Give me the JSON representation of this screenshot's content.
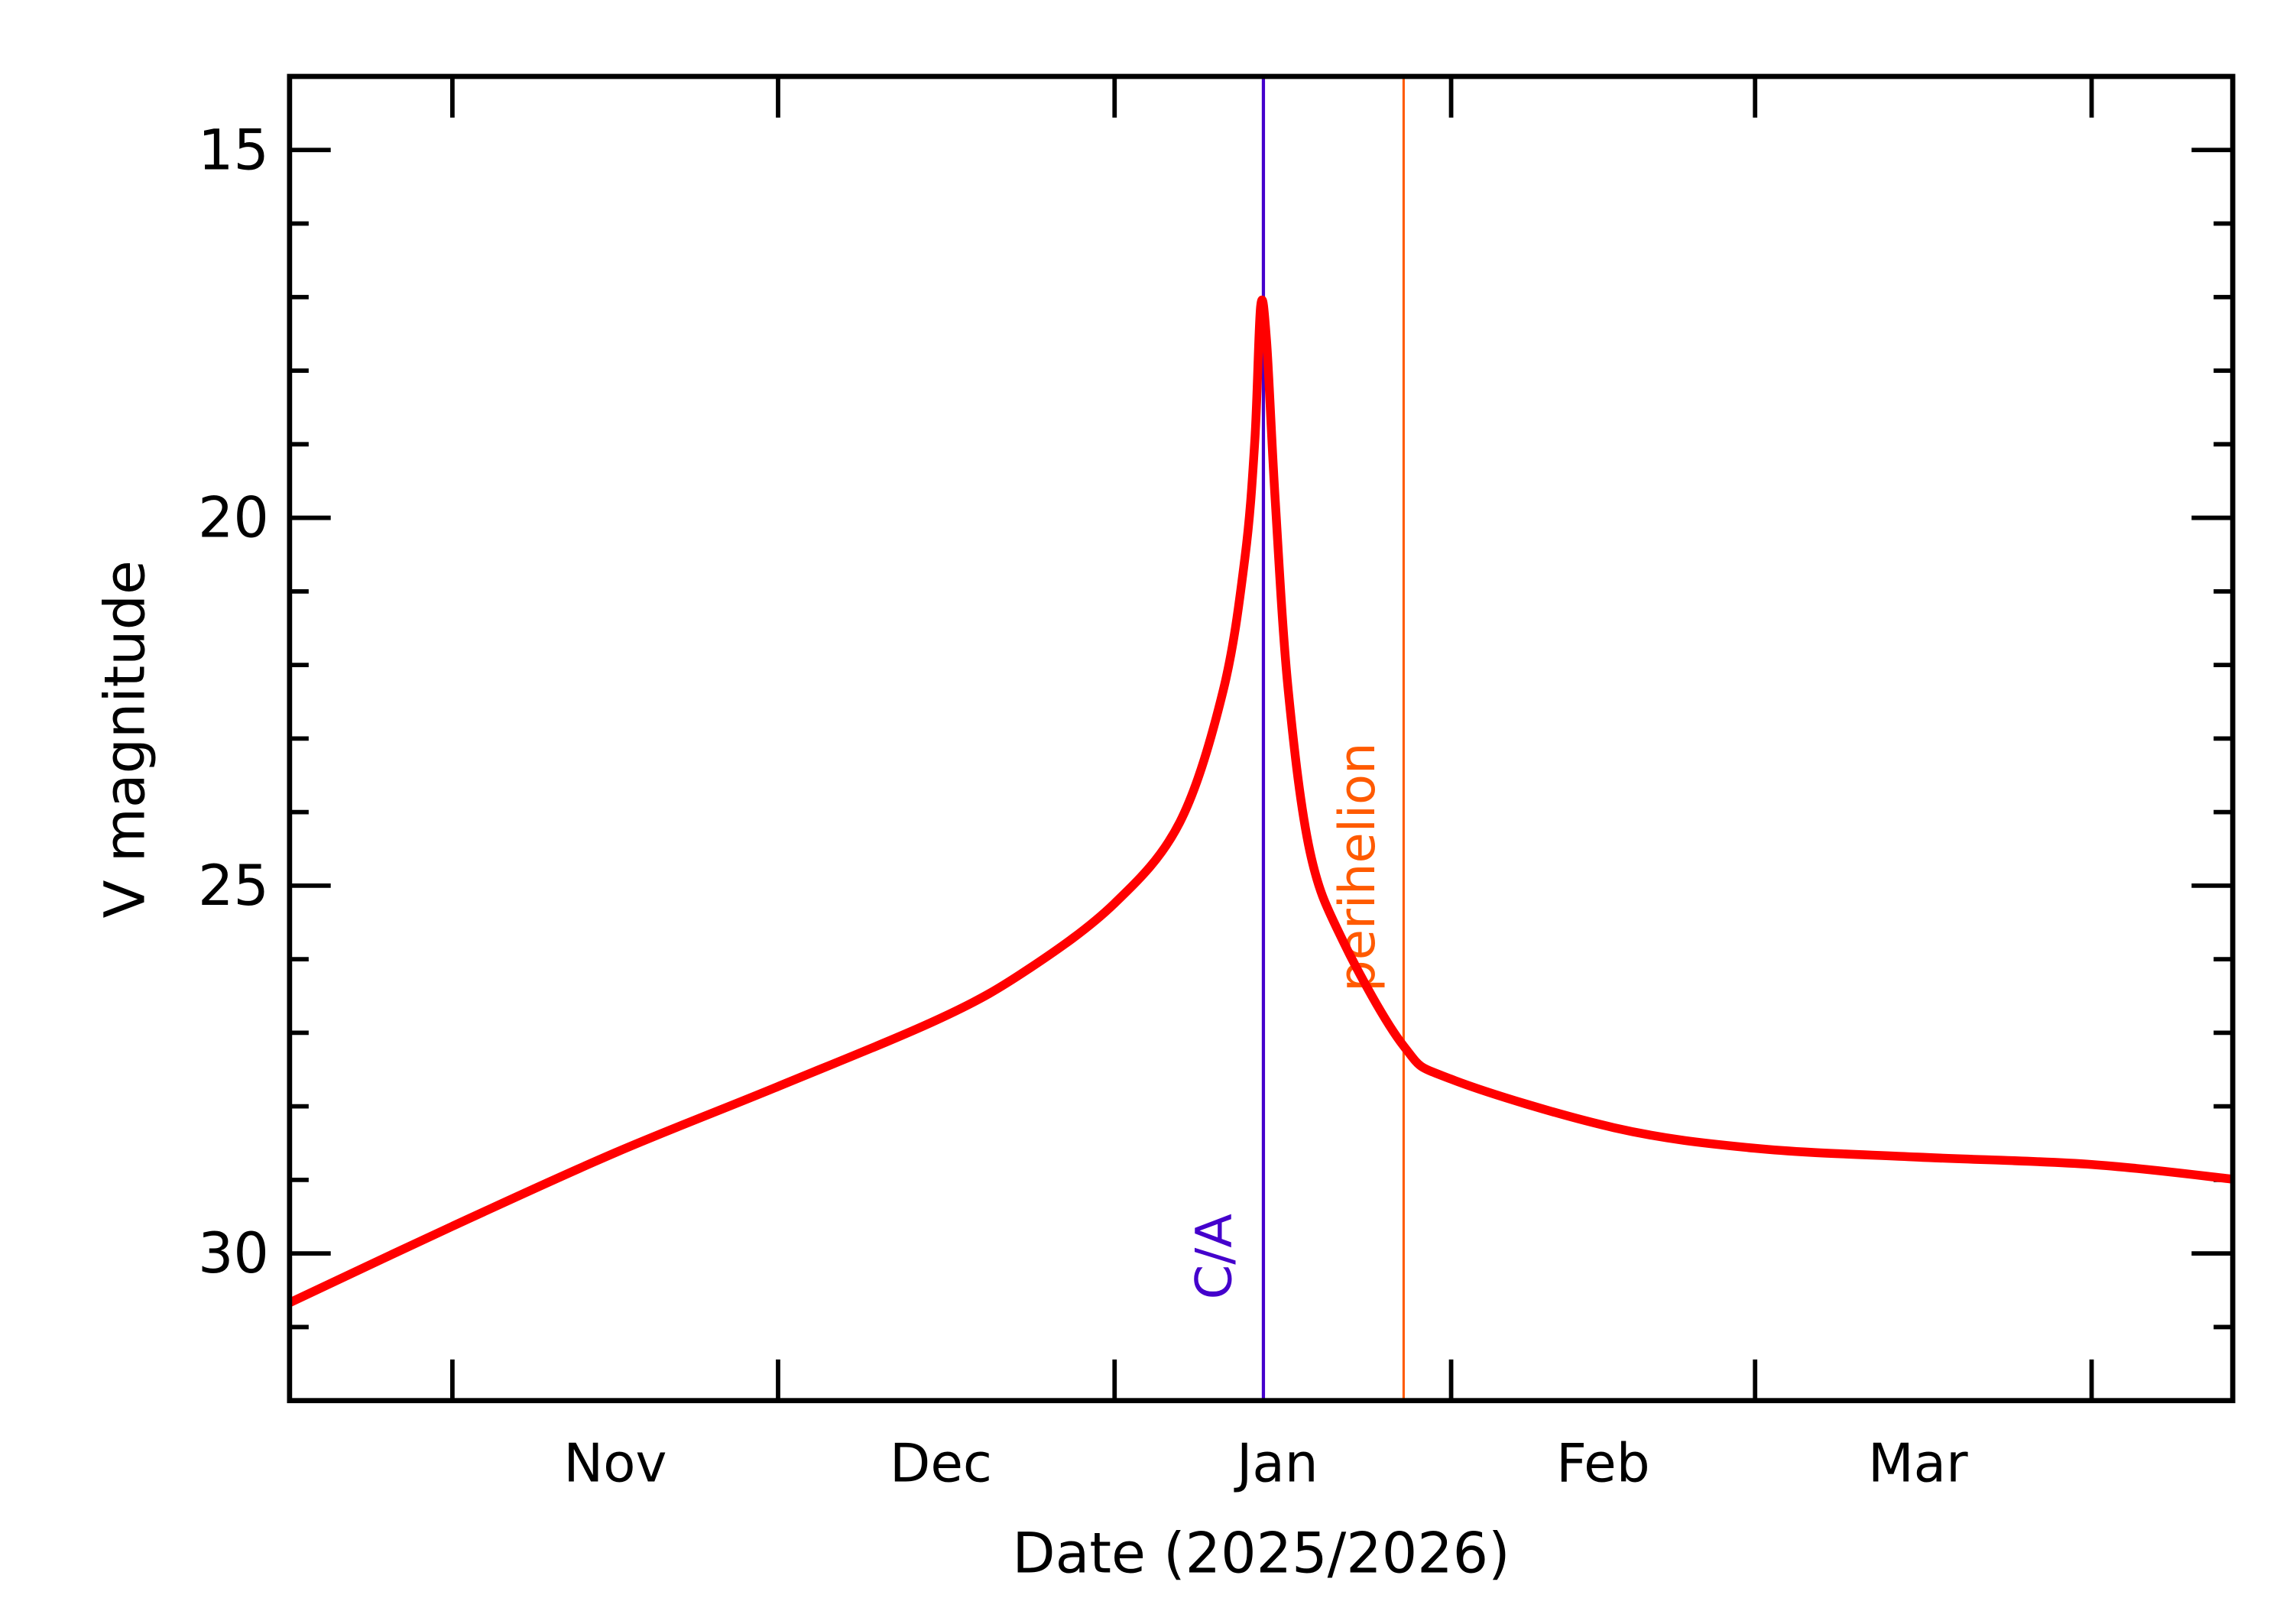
{
  "chart_data": {
    "type": "line",
    "title": "",
    "xlabel": "Date (2025/2026)",
    "ylabel": "V magnitude",
    "xlim": [
      "2025-10-17",
      "2026-04-14"
    ],
    "ylim": [
      32,
      14
    ],
    "y_inverted": true,
    "grid": false,
    "legend": "none",
    "y_ticks": [
      15,
      20,
      25,
      30
    ],
    "y_tick_labels": [
      "15",
      "20",
      "25",
      "30"
    ],
    "y_minor_step": 1,
    "x_ticks": [
      "2025-11-01",
      "2025-12-01",
      "2026-01-01",
      "2026-02-01",
      "2026-03-01",
      "2026-04-01"
    ],
    "x_tick_labels": [
      {
        "label": "Nov",
        "at": "2025-11-16"
      },
      {
        "label": "Dec",
        "at": "2025-12-16"
      },
      {
        "label": "Jan",
        "at": "2026-01-16"
      },
      {
        "label": "Feb",
        "at": "2026-02-15"
      },
      {
        "label": "Mar",
        "at": "2026-03-16"
      }
    ],
    "series": [
      {
        "color": "#ff0000",
        "x": [
          "2025-10-17",
          "2025-11-01",
          "2025-11-16",
          "2025-12-01",
          "2025-12-16",
          "2025-12-24",
          "2026-01-01",
          "2026-01-07",
          "2026-01-11",
          "2026-01-13",
          "2026-01-13T22:00",
          "2026-01-14T11:00",
          "2026-01-15T00:00",
          "2026-01-15T19:00",
          "2026-01-17",
          "2026-01-19",
          "2026-01-22",
          "2026-01-27T15:00",
          "2026-02-01",
          "2026-02-16",
          "2026-03-01",
          "2026-03-16",
          "2026-04-01",
          "2026-04-14"
        ],
        "y": [
          30.67,
          29.63,
          28.63,
          27.73,
          26.8,
          26.14,
          25.24,
          24.14,
          22.35,
          20.55,
          18.95,
          17.12,
          17.6,
          19.75,
          22.35,
          24.54,
          25.74,
          27.18,
          27.63,
          28.29,
          28.57,
          28.69,
          28.79,
          28.99
        ]
      }
    ],
    "annotations": [
      {
        "label": "C/A",
        "date": "2026-01-14T17:00",
        "color": "#4400cc"
      },
      {
        "label": "perihelion",
        "date": "2026-01-27T15:00",
        "color": "#ff5a00"
      }
    ]
  }
}
